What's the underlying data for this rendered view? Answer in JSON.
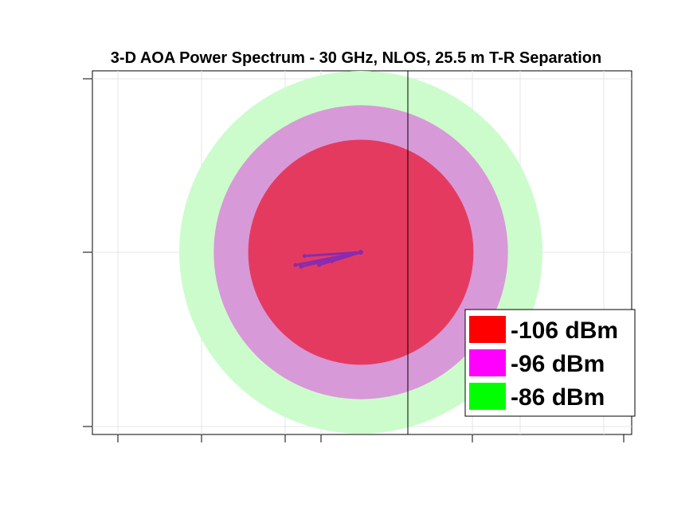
{
  "chart_data": {
    "type": "polar-contour",
    "title": "3-D AOA Power Spectrum - 30 GHz, NLOS, 25.5 m T-R Separation",
    "xlabel": "",
    "ylabel": "",
    "grid": true,
    "legend_position": "bottom-right",
    "levels": [
      {
        "label": "-106 dBm",
        "value": -106,
        "color": "#ff0000",
        "fill": "#e53a60"
      },
      {
        "label": "-96 dBm",
        "value": -96,
        "color": "#ff00ff",
        "fill": "#d899d8"
      },
      {
        "label": "-86 dBm",
        "value": -86,
        "color": "#00ff00",
        "fill": "#ccfccc"
      }
    ],
    "rings": [
      {
        "level": -86,
        "radius": 1.0
      },
      {
        "level": -96,
        "radius": 0.81
      },
      {
        "level": -106,
        "radius": 0.62
      }
    ],
    "arrival_vectors": [
      {
        "dx": -0.33,
        "dy": -0.08
      },
      {
        "dx": -0.36,
        "dy": -0.07
      },
      {
        "dx": -0.23,
        "dy": -0.07
      },
      {
        "dx": -0.16,
        "dy": -0.05
      },
      {
        "dx": -0.31,
        "dy": -0.02
      },
      {
        "dx": -0.08,
        "dy": -0.02
      }
    ]
  }
}
